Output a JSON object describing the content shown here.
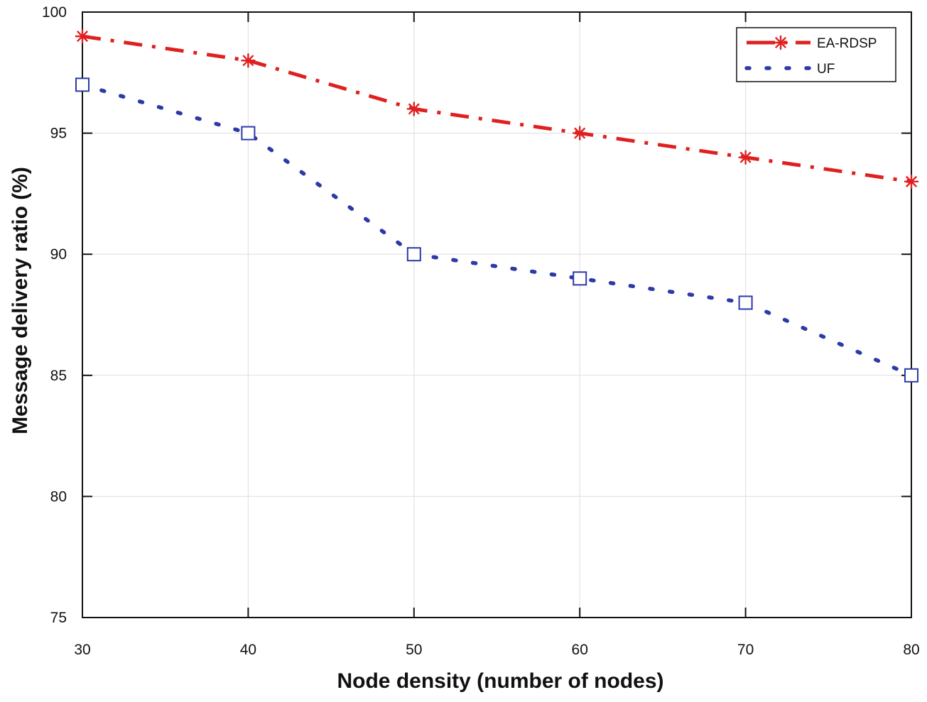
{
  "chart_data": {
    "type": "line",
    "title": "",
    "xlabel": "Node density (number of nodes)",
    "ylabel": "Message delivery ratio (%)",
    "x": [
      30,
      40,
      50,
      60,
      70,
      80
    ],
    "xlim": [
      30,
      80
    ],
    "ylim": [
      75,
      100
    ],
    "xticks": [
      30,
      40,
      50,
      60,
      70,
      80
    ],
    "yticks": [
      75,
      80,
      85,
      90,
      95,
      100
    ],
    "grid": true,
    "legend_position": "top-right",
    "series": [
      {
        "name": "EA-RDSP",
        "values": [
          99,
          98,
          96,
          95,
          94,
          93
        ],
        "color": "#e02020",
        "line_style": "dash-dot",
        "marker": "asterisk"
      },
      {
        "name": "UF",
        "values": [
          97,
          95,
          90,
          89,
          88,
          85
        ],
        "color": "#2b3aa8",
        "line_style": "dotted",
        "marker": "square"
      }
    ]
  }
}
